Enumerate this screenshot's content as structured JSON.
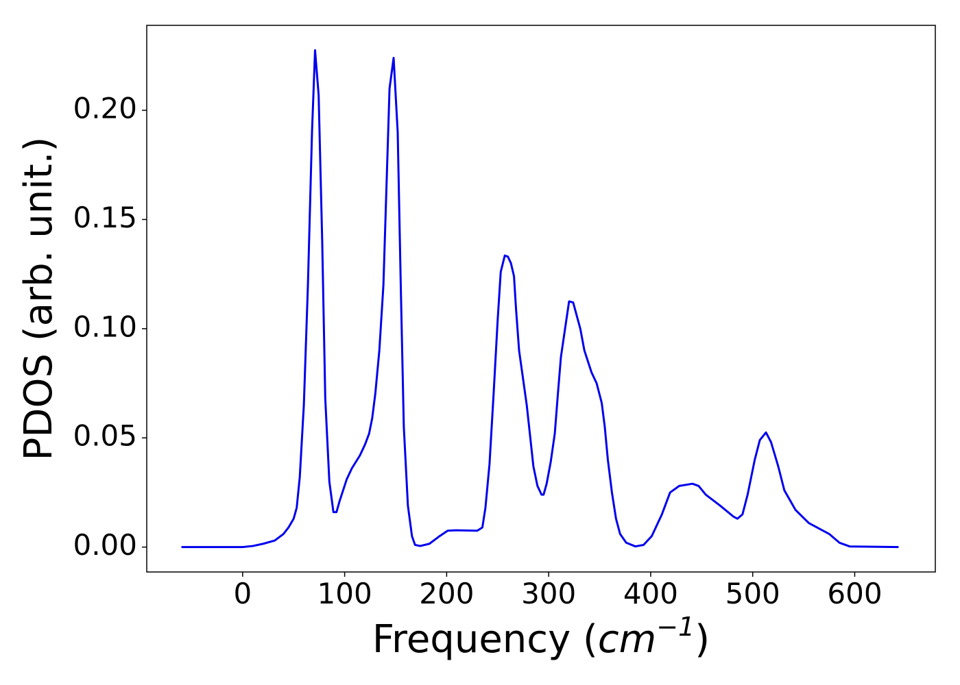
{
  "chart_data": {
    "type": "line",
    "x_label_parts": [
      "Frequency (",
      "cm",
      "−1",
      ")"
    ],
    "y_label": "PDOS (arb. unit.)",
    "x": [
      -60,
      0,
      10,
      20,
      31.5,
      40,
      45,
      50,
      53,
      56,
      60,
      64,
      68,
      71,
      74.5,
      78,
      81,
      85,
      89,
      92,
      95,
      102,
      107,
      115,
      120,
      124,
      127,
      130,
      134,
      138,
      141,
      144,
      148,
      152,
      155,
      158,
      162,
      166,
      169,
      174,
      183,
      193,
      201,
      209,
      230,
      235,
      238,
      242,
      246,
      250,
      253,
      257,
      260,
      263,
      266,
      268,
      271,
      278.5,
      282,
      285,
      289,
      293,
      295,
      298,
      302,
      306,
      309,
      312,
      317,
      320,
      324,
      331,
      335,
      342,
      347,
      352,
      355,
      358,
      362,
      366,
      370,
      376,
      385,
      393,
      401,
      411,
      419,
      428,
      441,
      447,
      454,
      468,
      481,
      485,
      490,
      495,
      502,
      507,
      513,
      518,
      525,
      531,
      542,
      555,
      575,
      585,
      595,
      643
    ],
    "series": [
      {
        "name": "PDOS",
        "color": "#0000ee",
        "values": [
          0,
          0,
          0.0005,
          0.0015,
          0.003,
          0.006,
          0.009,
          0.013,
          0.018,
          0.032,
          0.065,
          0.12,
          0.19,
          0.2275,
          0.207,
          0.14,
          0.068,
          0.03,
          0.016,
          0.016,
          0.021,
          0.031,
          0.036,
          0.042,
          0.047,
          0.052,
          0.059,
          0.07,
          0.09,
          0.12,
          0.165,
          0.21,
          0.224,
          0.19,
          0.12,
          0.055,
          0.019,
          0.005,
          0.001,
          0.0005,
          0.0015,
          0.005,
          0.0075,
          0.0077,
          0.0075,
          0.009,
          0.018,
          0.038,
          0.07,
          0.104,
          0.126,
          0.1335,
          0.133,
          0.13,
          0.124,
          0.109,
          0.09,
          0.065,
          0.05,
          0.037,
          0.028,
          0.024,
          0.024,
          0.029,
          0.039,
          0.052,
          0.07,
          0.087,
          0.103,
          0.1125,
          0.112,
          0.1,
          0.09,
          0.08,
          0.075,
          0.066,
          0.055,
          0.04,
          0.025,
          0.013,
          0.006,
          0.002,
          0.0003,
          0.001,
          0.005,
          0.015,
          0.025,
          0.028,
          0.029,
          0.028,
          0.024,
          0.019,
          0.014,
          0.013,
          0.015,
          0.024,
          0.04,
          0.049,
          0.0525,
          0.048,
          0.037,
          0.026,
          0.017,
          0.011,
          0.006,
          0.002,
          0.0003,
          0
        ]
      }
    ],
    "xlim": [
      -94,
      679
    ],
    "ylim": [
      -0.0114,
      0.2389
    ],
    "xticks": [
      0,
      100,
      200,
      300,
      400,
      500,
      600
    ],
    "yticks": [
      {
        "value": 0,
        "label": "0.00"
      },
      {
        "value": 0.05,
        "label": "0.05"
      },
      {
        "value": 0.1,
        "label": "0.10"
      },
      {
        "value": 0.15,
        "label": "0.15"
      },
      {
        "value": 0.2,
        "label": "0.20"
      }
    ],
    "grid": false
  }
}
